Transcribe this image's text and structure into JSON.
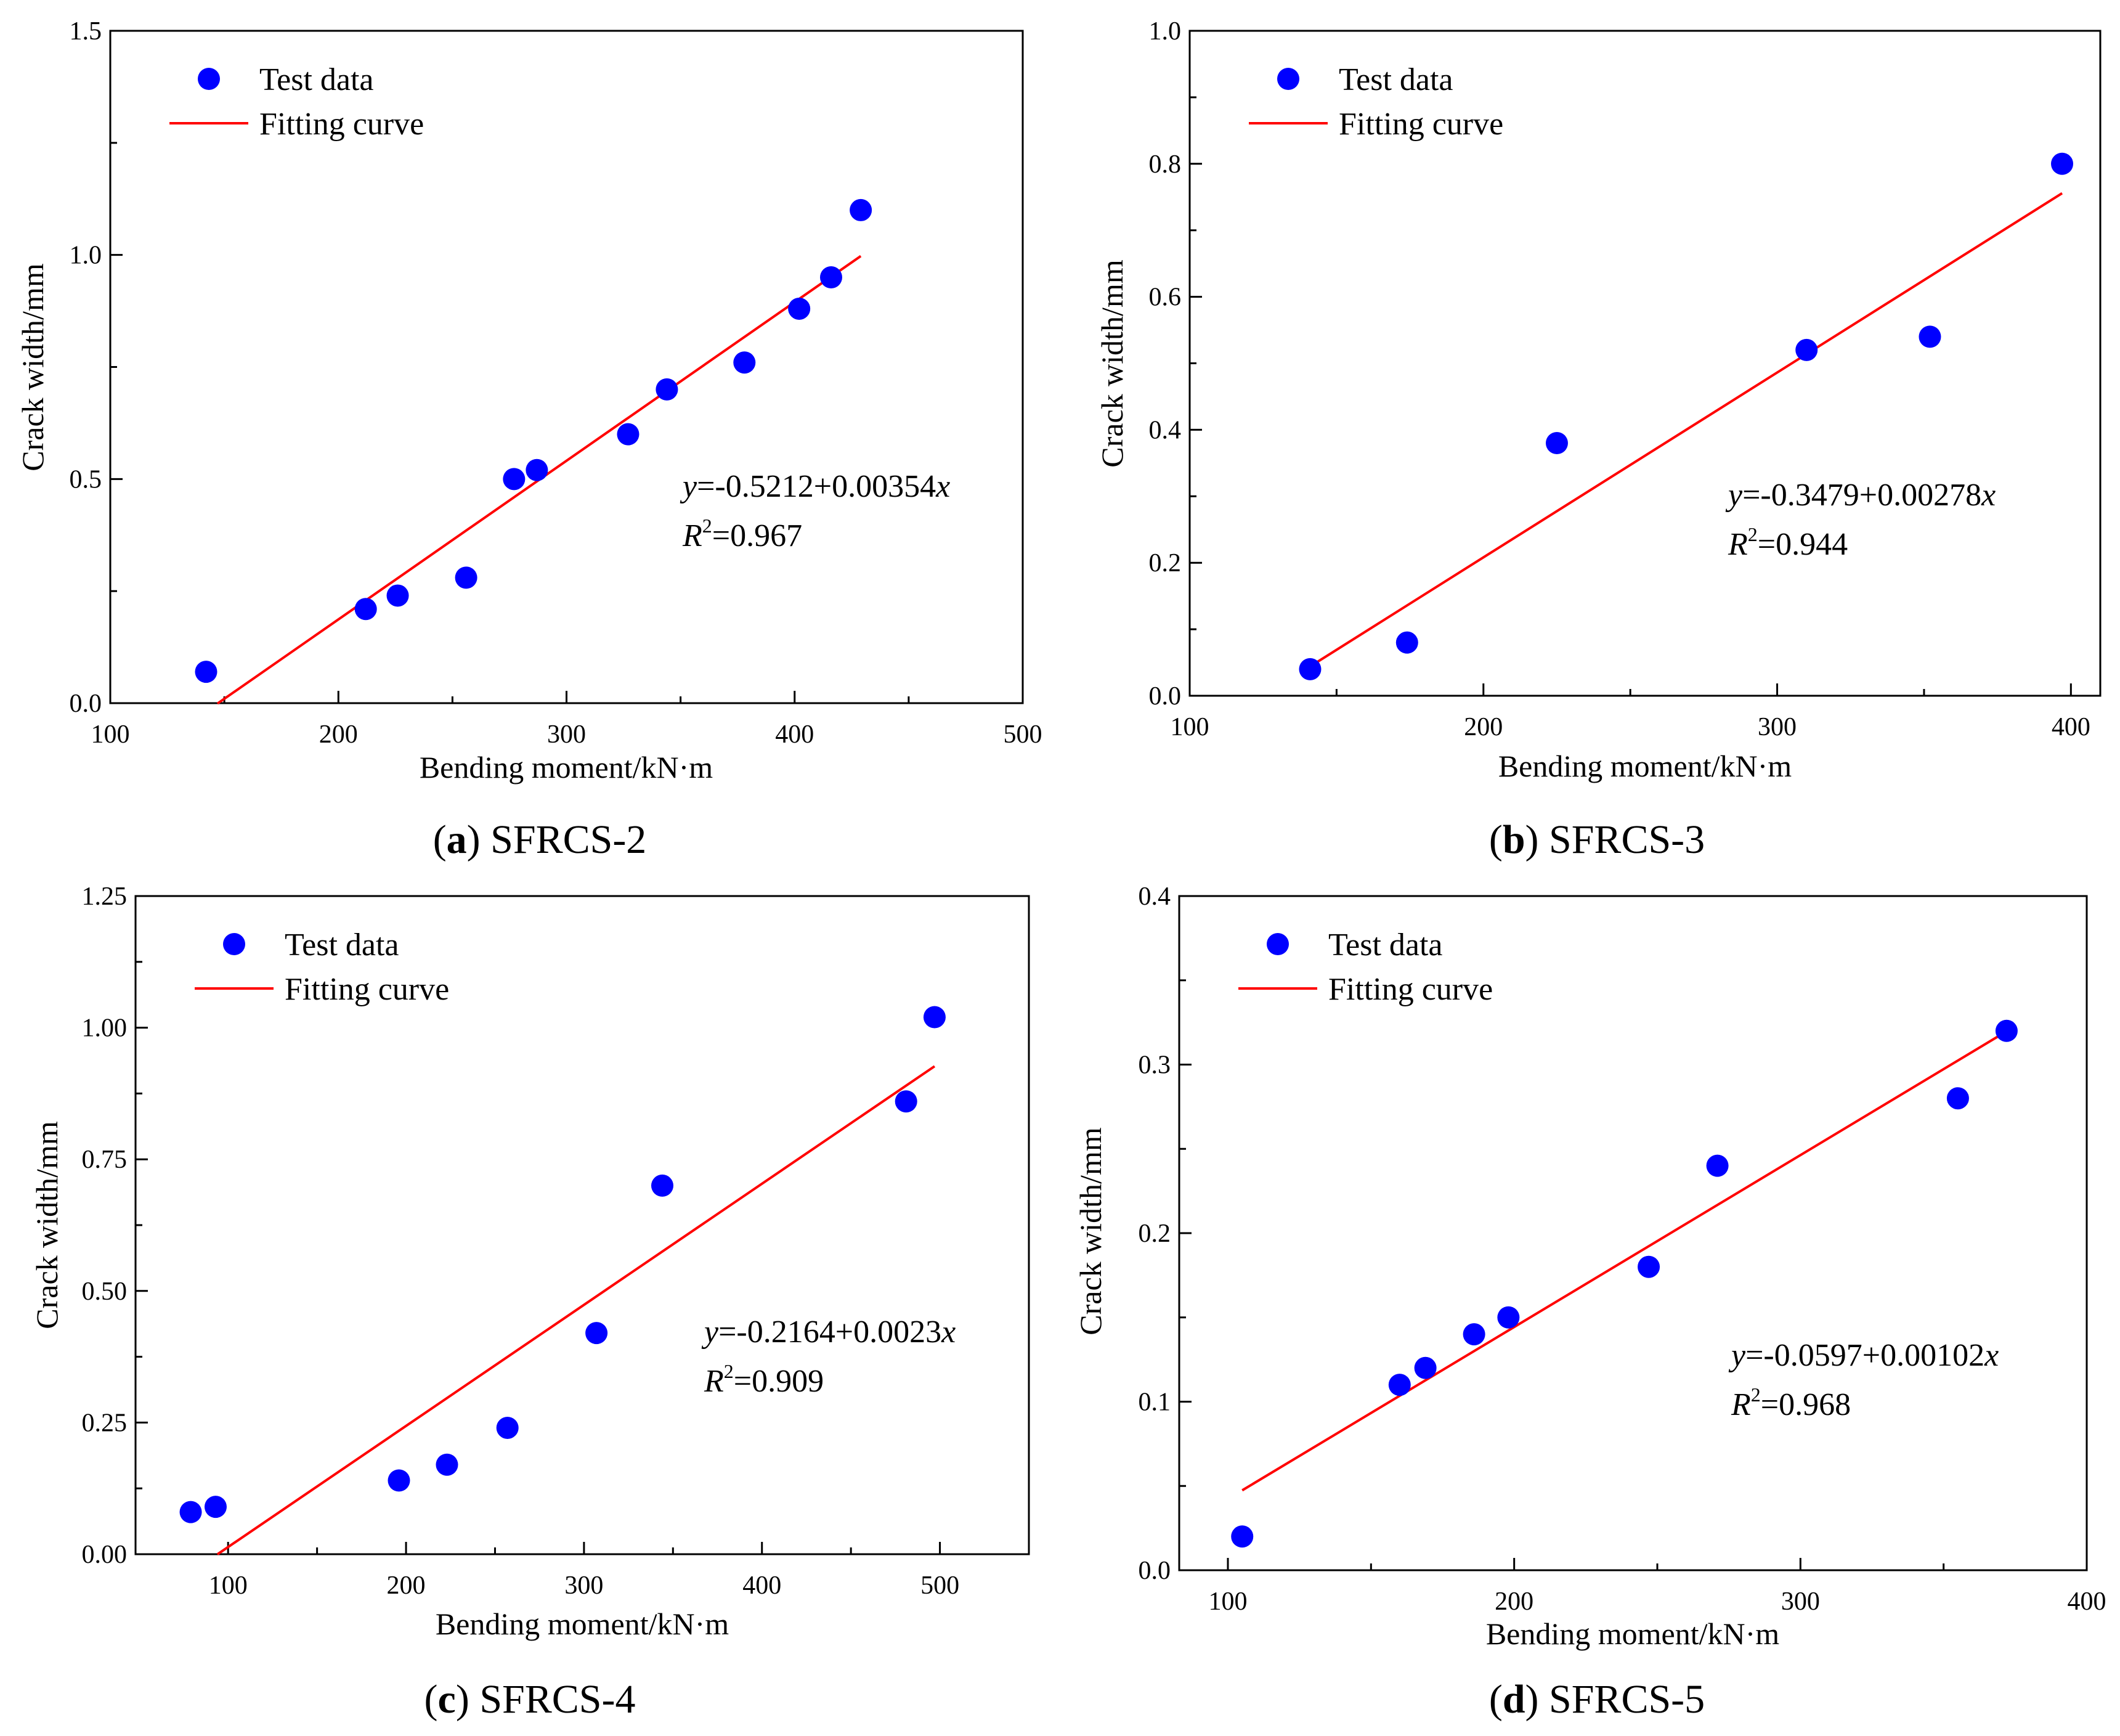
{
  "chart_data": [
    {
      "id": "a",
      "type": "scatter",
      "caption_letter": "a",
      "caption_text": "SFRCS-2",
      "xlabel": "Bending moment/kN·m",
      "ylabel": "Crack width/mm",
      "xlim": [
        100,
        500
      ],
      "ylim": [
        0.0,
        1.5
      ],
      "x_ticks": [
        100,
        200,
        300,
        400,
        500
      ],
      "x_tick_labels": [
        "100",
        "200",
        "300",
        "400",
        "500"
      ],
      "y_ticks": [
        0.0,
        0.5,
        1.0,
        1.5
      ],
      "y_tick_labels": [
        "0.0",
        "0.5",
        "1.0",
        "1.5"
      ],
      "legend": {
        "placement": "top-left",
        "points_label": "Test data",
        "line_label": "Fitting curve"
      },
      "series": [
        {
          "name": "Test data",
          "x": [
            142,
            212,
            226,
            256,
            277,
            287,
            327,
            344,
            378,
            402,
            416,
            429
          ],
          "y": [
            0.07,
            0.21,
            0.24,
            0.28,
            0.5,
            0.52,
            0.6,
            0.7,
            0.76,
            0.88,
            0.95,
            1.1
          ]
        }
      ],
      "fit": {
        "name": "Fitting curve",
        "intercept": -0.5212,
        "slope": 0.00354,
        "x_range": [
          147,
          429
        ]
      },
      "equation": {
        "y_var": "y",
        "rhs": "=-0.5212+0.00354",
        "x_var": "x",
        "r_var": "R",
        "r_exp": "2",
        "r_val": "=0.967"
      }
    },
    {
      "id": "b",
      "type": "scatter",
      "caption_letter": "b",
      "caption_text": "SFRCS-3",
      "xlabel": "Bending moment/kN·m",
      "ylabel": "Crack width/mm",
      "xlim": [
        100,
        410
      ],
      "ylim": [
        0.0,
        1.0
      ],
      "x_ticks": [
        100,
        200,
        300,
        400
      ],
      "x_tick_labels": [
        "100",
        "200",
        "300",
        "400"
      ],
      "y_ticks": [
        0.0,
        0.2,
        0.4,
        0.6,
        0.8,
        1.0
      ],
      "y_tick_labels": [
        "0.0",
        "0.2",
        "0.4",
        "0.6",
        "0.8",
        "1.0"
      ],
      "legend": {
        "placement": "top-left",
        "points_label": "Test data",
        "line_label": "Fitting curve"
      },
      "series": [
        {
          "name": "Test data",
          "x": [
            141,
            174,
            225,
            310,
            352,
            397
          ],
          "y": [
            0.04,
            0.08,
            0.38,
            0.52,
            0.54,
            0.8
          ]
        }
      ],
      "fit": {
        "name": "Fitting curve",
        "intercept": -0.3479,
        "slope": 0.00278,
        "x_range": [
          141,
          397
        ]
      },
      "equation": {
        "y_var": "y",
        "rhs": "=-0.3479+0.00278",
        "x_var": "x",
        "r_var": "R",
        "r_exp": "2",
        "r_val": "=0.944"
      }
    },
    {
      "id": "c",
      "type": "scatter",
      "caption_letter": "c",
      "caption_text": "SFRCS-4",
      "xlabel": "Bending moment/kN·m",
      "ylabel": "Crack width/mm",
      "xlim": [
        48,
        550
      ],
      "ylim": [
        0.0,
        1.25
      ],
      "x_ticks": [
        100,
        200,
        300,
        400,
        500
      ],
      "x_tick_labels": [
        "100",
        "200",
        "300",
        "400",
        "500"
      ],
      "y_ticks": [
        0.0,
        0.25,
        0.5,
        0.75,
        1.0,
        1.25
      ],
      "y_tick_labels": [
        "0.00",
        "0.25",
        "0.50",
        "0.75",
        "1.00",
        "1.25"
      ],
      "legend": {
        "placement": "top-left",
        "points_label": "Test data",
        "line_label": "Fitting curve"
      },
      "series": [
        {
          "name": "Test data",
          "x": [
            79,
            93,
            196,
            223,
            257,
            307,
            344,
            481,
            497
          ],
          "y": [
            0.08,
            0.09,
            0.14,
            0.17,
            0.24,
            0.42,
            0.7,
            0.86,
            1.02
          ]
        }
      ],
      "fit": {
        "name": "Fitting curve",
        "intercept": -0.2164,
        "slope": 0.0023,
        "x_range": [
          94,
          497
        ]
      },
      "equation": {
        "y_var": "y",
        "rhs": "=-0.2164+0.0023",
        "x_var": "x",
        "r_var": "R",
        "r_exp": "2",
        "r_val": "=0.909"
      }
    },
    {
      "id": "d",
      "type": "scatter",
      "caption_letter": "d",
      "caption_text": "SFRCS-5",
      "xlabel": "Bending moment/kN·m",
      "ylabel": "Crack width/mm",
      "xlim": [
        83,
        400
      ],
      "ylim": [
        0.0,
        0.4
      ],
      "x_ticks": [
        100,
        200,
        300,
        400
      ],
      "x_tick_labels": [
        "100",
        "200",
        "300",
        "400"
      ],
      "y_ticks": [
        0.0,
        0.1,
        0.2,
        0.3,
        0.4
      ],
      "y_tick_labels": [
        "0.0",
        "0.1",
        "0.2",
        "0.3",
        "0.4"
      ],
      "legend": {
        "placement": "top-left",
        "points_label": "Test data",
        "line_label": "Fitting curve"
      },
      "series": [
        {
          "name": "Test data",
          "x": [
            105,
            160,
            169,
            186,
            198,
            247,
            271,
            355,
            372
          ],
          "y": [
            0.02,
            0.11,
            0.12,
            0.14,
            0.15,
            0.18,
            0.24,
            0.28,
            0.32
          ]
        }
      ],
      "fit": {
        "name": "Fitting curve",
        "intercept": -0.0597,
        "slope": 0.00102,
        "x_range": [
          105,
          372
        ]
      },
      "equation": {
        "y_var": "y",
        "rhs": "=-0.0597+0.00102",
        "x_var": "x",
        "r_var": "R",
        "r_exp": "2",
        "r_val": "=0.968"
      }
    }
  ]
}
